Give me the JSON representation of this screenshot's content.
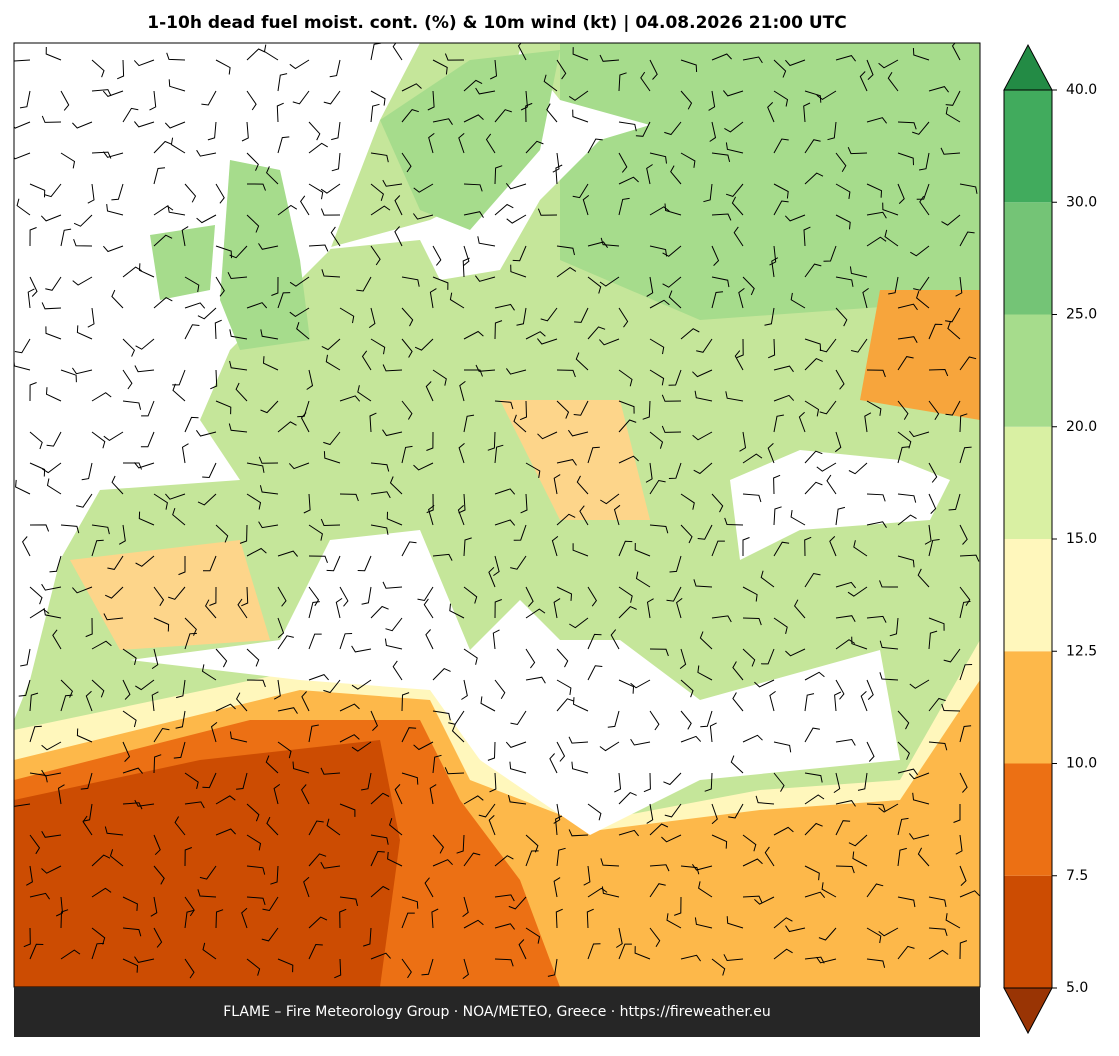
{
  "title": "1-10h dead fuel moist. cont. (%) & 10m wind (kt)  |  04.08.2026 21:00 UTC",
  "footer": "FLAME – Fire Meteorology Group · NOA/METEO, Greece · https://fireweather.eu",
  "colorbar": {
    "ticks": [
      {
        "value": 5,
        "label": "5.0"
      },
      7.5,
      {
        "value": 10,
        "label": "10.0"
      },
      12.5,
      {
        "value": 15,
        "label": "15.0"
      },
      {
        "value": 20,
        "label": "20.0"
      },
      {
        "value": 25,
        "label": "25.0"
      },
      {
        "value": 30,
        "label": "30.0"
      },
      {
        "value": 40,
        "label": "40.0"
      }
    ],
    "colors": [
      "#cc4c02",
      "#ec7014",
      "#fdb84a",
      "#fff7bc",
      "#d9f0a3",
      "#a6dc8c",
      "#74c476",
      "#41ab5d"
    ],
    "under_color": "#993404",
    "over_color": "#238b45"
  }
}
